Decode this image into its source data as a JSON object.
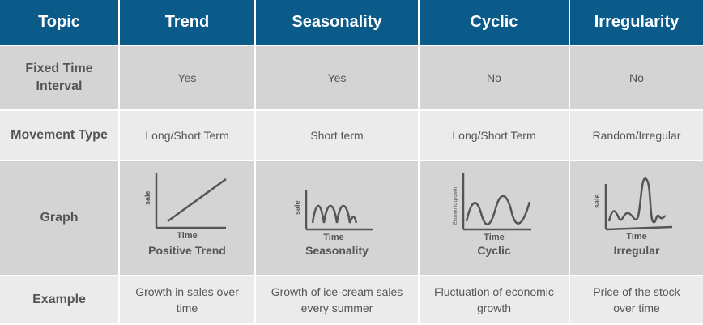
{
  "header": [
    "Topic",
    "Trend",
    "Seasonality",
    "Cyclic",
    "Irregularity"
  ],
  "rows": [
    {
      "label": "Fixed Time Interval",
      "values": [
        "Yes",
        "Yes",
        "No",
        "No"
      ]
    },
    {
      "label": "Movement Type",
      "values": [
        "Long/Short Term",
        "Short  term",
        "Long/Short Term",
        "Random/Irregular"
      ]
    },
    {
      "label": "Graph"
    },
    {
      "label": "Example",
      "values": [
        "Growth  in sales over time",
        "Growth  of ice-cream sales every summer",
        "Fluctuation of economic growth",
        "Price of the stock over time"
      ]
    }
  ],
  "graphs": [
    {
      "ylabel": "sale",
      "xlabel": "Time",
      "caption": "Positive Trend"
    },
    {
      "ylabel": "sale",
      "xlabel": "Time",
      "caption": "Seasonality"
    },
    {
      "ylabel": "Economic growth",
      "xlabel": "Time",
      "caption": "Cyclic"
    },
    {
      "ylabel": "sale",
      "xlabel": "Time",
      "caption": "Irregular"
    }
  ],
  "colors": {
    "header_bg": "#0a5a8a",
    "row_dark": "#d4d4d4",
    "row_light": "#ebebeb",
    "line": "#555555"
  }
}
